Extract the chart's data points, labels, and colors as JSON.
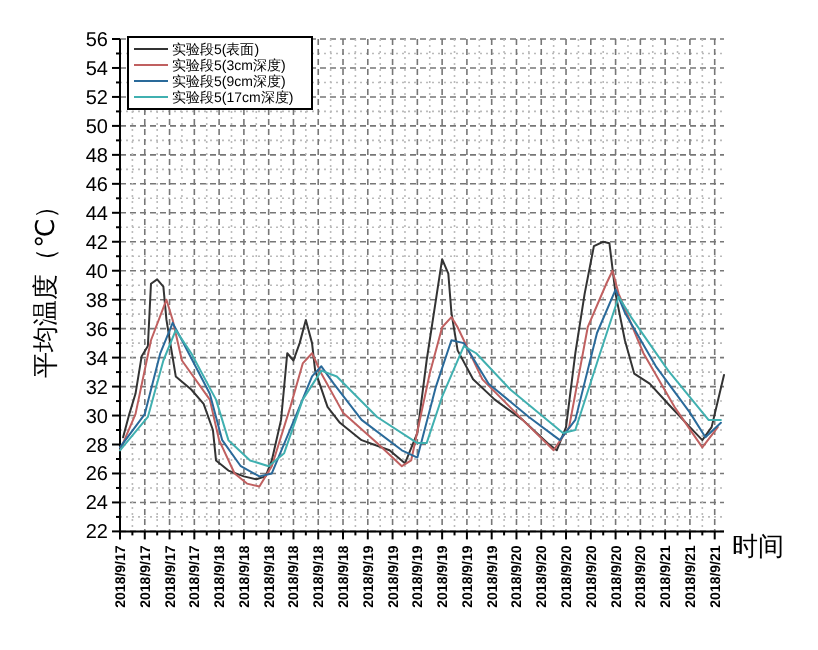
{
  "chart_data": {
    "type": "line",
    "ylabel": "平均温度（℃）",
    "xlabel": "时间",
    "xlim": [
      "2018-09-17T08:00",
      "2018-09-21T09:30"
    ],
    "ylim": [
      22,
      56
    ],
    "yticks": [
      22,
      24,
      26,
      28,
      30,
      32,
      34,
      36,
      38,
      40,
      42,
      44,
      46,
      48,
      50,
      52,
      54,
      56
    ],
    "xticks": [
      {
        "value": "2018-09-17T08:00",
        "label": "2018/9/17"
      },
      {
        "value": "2018-09-17T12:00",
        "label": "2018/9/17"
      },
      {
        "value": "2018-09-17T16:00",
        "label": "2018/9/17"
      },
      {
        "value": "2018-09-17T20:00",
        "label": "2018/9/17"
      },
      {
        "value": "2018-09-18T00:00",
        "label": "2018/9/18"
      },
      {
        "value": "2018-09-18T04:00",
        "label": "2018/9/18"
      },
      {
        "value": "2018-09-18T08:00",
        "label": "2018/9/18"
      },
      {
        "value": "2018-09-18T12:00",
        "label": "2018/9/18"
      },
      {
        "value": "2018-09-18T16:00",
        "label": "2018/9/18"
      },
      {
        "value": "2018-09-18T20:00",
        "label": "2018/9/18"
      },
      {
        "value": "2018-09-19T00:00",
        "label": "2018/9/19"
      },
      {
        "value": "2018-09-19T04:00",
        "label": "2018/9/19"
      },
      {
        "value": "2018-09-19T08:00",
        "label": "2018/9/19"
      },
      {
        "value": "2018-09-19T12:00",
        "label": "2018/9/19"
      },
      {
        "value": "2018-09-19T16:00",
        "label": "2018/9/19"
      },
      {
        "value": "2018-09-19T20:00",
        "label": "2018/9/19"
      },
      {
        "value": "2018-09-20T00:00",
        "label": "2018/9/20"
      },
      {
        "value": "2018-09-20T04:00",
        "label": "2018/9/20"
      },
      {
        "value": "2018-09-20T08:00",
        "label": "2018/9/20"
      },
      {
        "value": "2018-09-20T12:00",
        "label": "2018/9/20"
      },
      {
        "value": "2018-09-20T16:00",
        "label": "2018/9/20"
      },
      {
        "value": "2018-09-20T20:00",
        "label": "2018/9/20"
      },
      {
        "value": "2018-09-21T00:00",
        "label": "2018/9/21"
      },
      {
        "value": "2018-09-21T04:00",
        "label": "2018/9/21"
      },
      {
        "value": "2018-09-21T08:00",
        "label": "2018/9/21"
      }
    ],
    "grid": true,
    "legend": "top left",
    "marker": "none",
    "line_style": "solid",
    "series": [
      {
        "name": "实验段5(表面)",
        "color": "#333333",
        "x": [
          "2018-09-17T08:30",
          "2018-09-17T09:30",
          "2018-09-17T10:30",
          "2018-09-17T11:30",
          "2018-09-17T12:30",
          "2018-09-17T13:00",
          "2018-09-17T14:00",
          "2018-09-17T15:00",
          "2018-09-17T15:30",
          "2018-09-17T17:00",
          "2018-09-17T19:30",
          "2018-09-17T21:30",
          "2018-09-17T23:00",
          "2018-09-17T23:30",
          "2018-09-18T01:30",
          "2018-09-18T04:00",
          "2018-09-18T06:00",
          "2018-09-18T07:30",
          "2018-09-18T08:30",
          "2018-09-18T10:00",
          "2018-09-18T11:00",
          "2018-09-18T12:00",
          "2018-09-18T13:00",
          "2018-09-18T14:00",
          "2018-09-18T15:00",
          "2018-09-18T15:30",
          "2018-09-18T17:30",
          "2018-09-18T19:30",
          "2018-09-18T23:00",
          "2018-09-19T03:30",
          "2018-09-19T06:00",
          "2018-09-19T08:00",
          "2018-09-19T09:30",
          "2018-09-19T11:00",
          "2018-09-19T12:00",
          "2018-09-19T13:00",
          "2018-09-19T13:30",
          "2018-09-19T14:30",
          "2018-09-19T17:00",
          "2018-09-19T20:30",
          "2018-09-20T01:00",
          "2018-09-20T05:00",
          "2018-09-20T06:30",
          "2018-09-20T08:00",
          "2018-09-20T09:30",
          "2018-09-20T11:00",
          "2018-09-20T12:30",
          "2018-09-20T14:00",
          "2018-09-20T15:00",
          "2018-09-20T16:00",
          "2018-09-20T17:30",
          "2018-09-20T19:00",
          "2018-09-20T21:30",
          "2018-09-21T00:30",
          "2018-09-21T04:00",
          "2018-09-21T06:00",
          "2018-09-21T07:30",
          "2018-09-21T09:30"
        ],
        "values": [
          28.5,
          30.1,
          31.5,
          34.1,
          34.8,
          39.1,
          39.4,
          38.9,
          36.6,
          32.7,
          31.8,
          30.8,
          29.0,
          26.9,
          26.2,
          25.8,
          25.6,
          25.8,
          26.9,
          29.7,
          34.3,
          33.8,
          35.0,
          36.6,
          35.0,
          33.1,
          30.6,
          29.5,
          28.3,
          27.6,
          26.7,
          28.8,
          33.8,
          38.0,
          40.8,
          39.8,
          37.1,
          34.5,
          32.5,
          31.1,
          29.7,
          28.1,
          27.6,
          29.2,
          34.3,
          38.4,
          41.7,
          42.0,
          41.9,
          38.4,
          35.2,
          32.9,
          32.2,
          30.8,
          29.2,
          28.3,
          29.2,
          32.8
        ]
      },
      {
        "name": "实验段5(3cm深度)",
        "color": "#c06060",
        "x": [
          "2018-09-17T08:00",
          "2018-09-17T10:30",
          "2018-09-17T13:00",
          "2018-09-17T15:30",
          "2018-09-17T16:30",
          "2018-09-17T18:00",
          "2018-09-17T22:30",
          "2018-09-18T00:00",
          "2018-09-18T02:30",
          "2018-09-18T04:30",
          "2018-09-18T06:30",
          "2018-09-18T08:30",
          "2018-09-18T11:30",
          "2018-09-18T13:30",
          "2018-09-18T15:00",
          "2018-09-18T16:30",
          "2018-09-18T20:00",
          "2018-09-19T01:30",
          "2018-09-19T05:30",
          "2018-09-19T07:00",
          "2018-09-19T10:00",
          "2018-09-19T12:00",
          "2018-09-19T13:30",
          "2018-09-19T14:30",
          "2018-09-19T18:30",
          "2018-09-20T01:00",
          "2018-09-20T06:00",
          "2018-09-20T08:30",
          "2018-09-20T11:30",
          "2018-09-20T14:30",
          "2018-09-20T15:30",
          "2018-09-20T16:30",
          "2018-09-20T20:30",
          "2018-09-21T01:30",
          "2018-09-21T06:00",
          "2018-09-21T08:30"
        ],
        "values": [
          27.6,
          30.1,
          35.2,
          38.0,
          36.6,
          33.8,
          31.1,
          28.3,
          26.0,
          25.3,
          25.1,
          26.5,
          30.6,
          33.6,
          34.3,
          32.9,
          30.2,
          28.1,
          26.5,
          26.9,
          32.9,
          36.1,
          36.8,
          36.1,
          32.5,
          29.7,
          27.6,
          29.2,
          36.1,
          39.1,
          40.0,
          38.4,
          34.3,
          30.6,
          27.8,
          29.2
        ]
      },
      {
        "name": "实验段5(9cm深度)",
        "color": "#2a6a9a",
        "x": [
          "2018-09-17T08:00",
          "2018-09-17T12:00",
          "2018-09-17T14:30",
          "2018-09-17T16:30",
          "2018-09-17T18:00",
          "2018-09-17T22:30",
          "2018-09-18T00:30",
          "2018-09-18T03:30",
          "2018-09-18T06:30",
          "2018-09-18T08:30",
          "2018-09-18T12:30",
          "2018-09-18T15:00",
          "2018-09-18T16:30",
          "2018-09-18T18:30",
          "2018-09-18T23:00",
          "2018-09-19T05:30",
          "2018-09-19T08:00",
          "2018-09-19T11:00",
          "2018-09-19T13:30",
          "2018-09-19T15:30",
          "2018-09-19T19:30",
          "2018-09-20T02:00",
          "2018-09-20T07:00",
          "2018-09-20T09:30",
          "2018-09-20T13:00",
          "2018-09-20T16:00",
          "2018-09-20T17:30",
          "2018-09-20T22:30",
          "2018-09-21T04:00",
          "2018-09-21T06:30",
          "2018-09-21T09:00"
        ],
        "values": [
          27.8,
          30.1,
          34.3,
          36.4,
          35.2,
          31.5,
          28.3,
          26.5,
          25.8,
          26.0,
          30.1,
          32.7,
          33.4,
          32.2,
          29.7,
          27.6,
          27.1,
          32.0,
          35.2,
          35.0,
          32.2,
          29.9,
          28.3,
          29.7,
          35.7,
          38.7,
          37.1,
          33.4,
          30.2,
          28.5,
          29.5
        ]
      },
      {
        "name": "实验段5(17cm深度)",
        "color": "#40b0b0",
        "x": [
          "2018-09-17T08:00",
          "2018-09-17T12:30",
          "2018-09-17T15:00",
          "2018-09-17T17:00",
          "2018-09-17T19:30",
          "2018-09-17T23:30",
          "2018-09-18T01:30",
          "2018-09-18T05:00",
          "2018-09-18T08:00",
          "2018-09-18T10:30",
          "2018-09-18T13:30",
          "2018-09-18T16:30",
          "2018-09-18T19:00",
          "2018-09-19T01:30",
          "2018-09-19T08:00",
          "2018-09-19T09:30",
          "2018-09-19T12:00",
          "2018-09-19T15:30",
          "2018-09-19T17:30",
          "2018-09-19T23:00",
          "2018-09-20T07:30",
          "2018-09-20T09:30",
          "2018-09-20T13:30",
          "2018-09-20T16:30",
          "2018-09-20T18:30",
          "2018-09-21T00:30",
          "2018-09-21T07:00",
          "2018-09-21T09:00"
        ],
        "values": [
          27.6,
          29.9,
          33.8,
          35.9,
          34.3,
          31.1,
          28.3,
          26.9,
          26.5,
          27.4,
          31.1,
          33.1,
          32.7,
          29.9,
          28.1,
          28.1,
          31.3,
          34.8,
          34.3,
          31.8,
          28.8,
          29.0,
          34.3,
          38.2,
          36.8,
          33.1,
          29.7,
          29.7
        ]
      }
    ]
  }
}
